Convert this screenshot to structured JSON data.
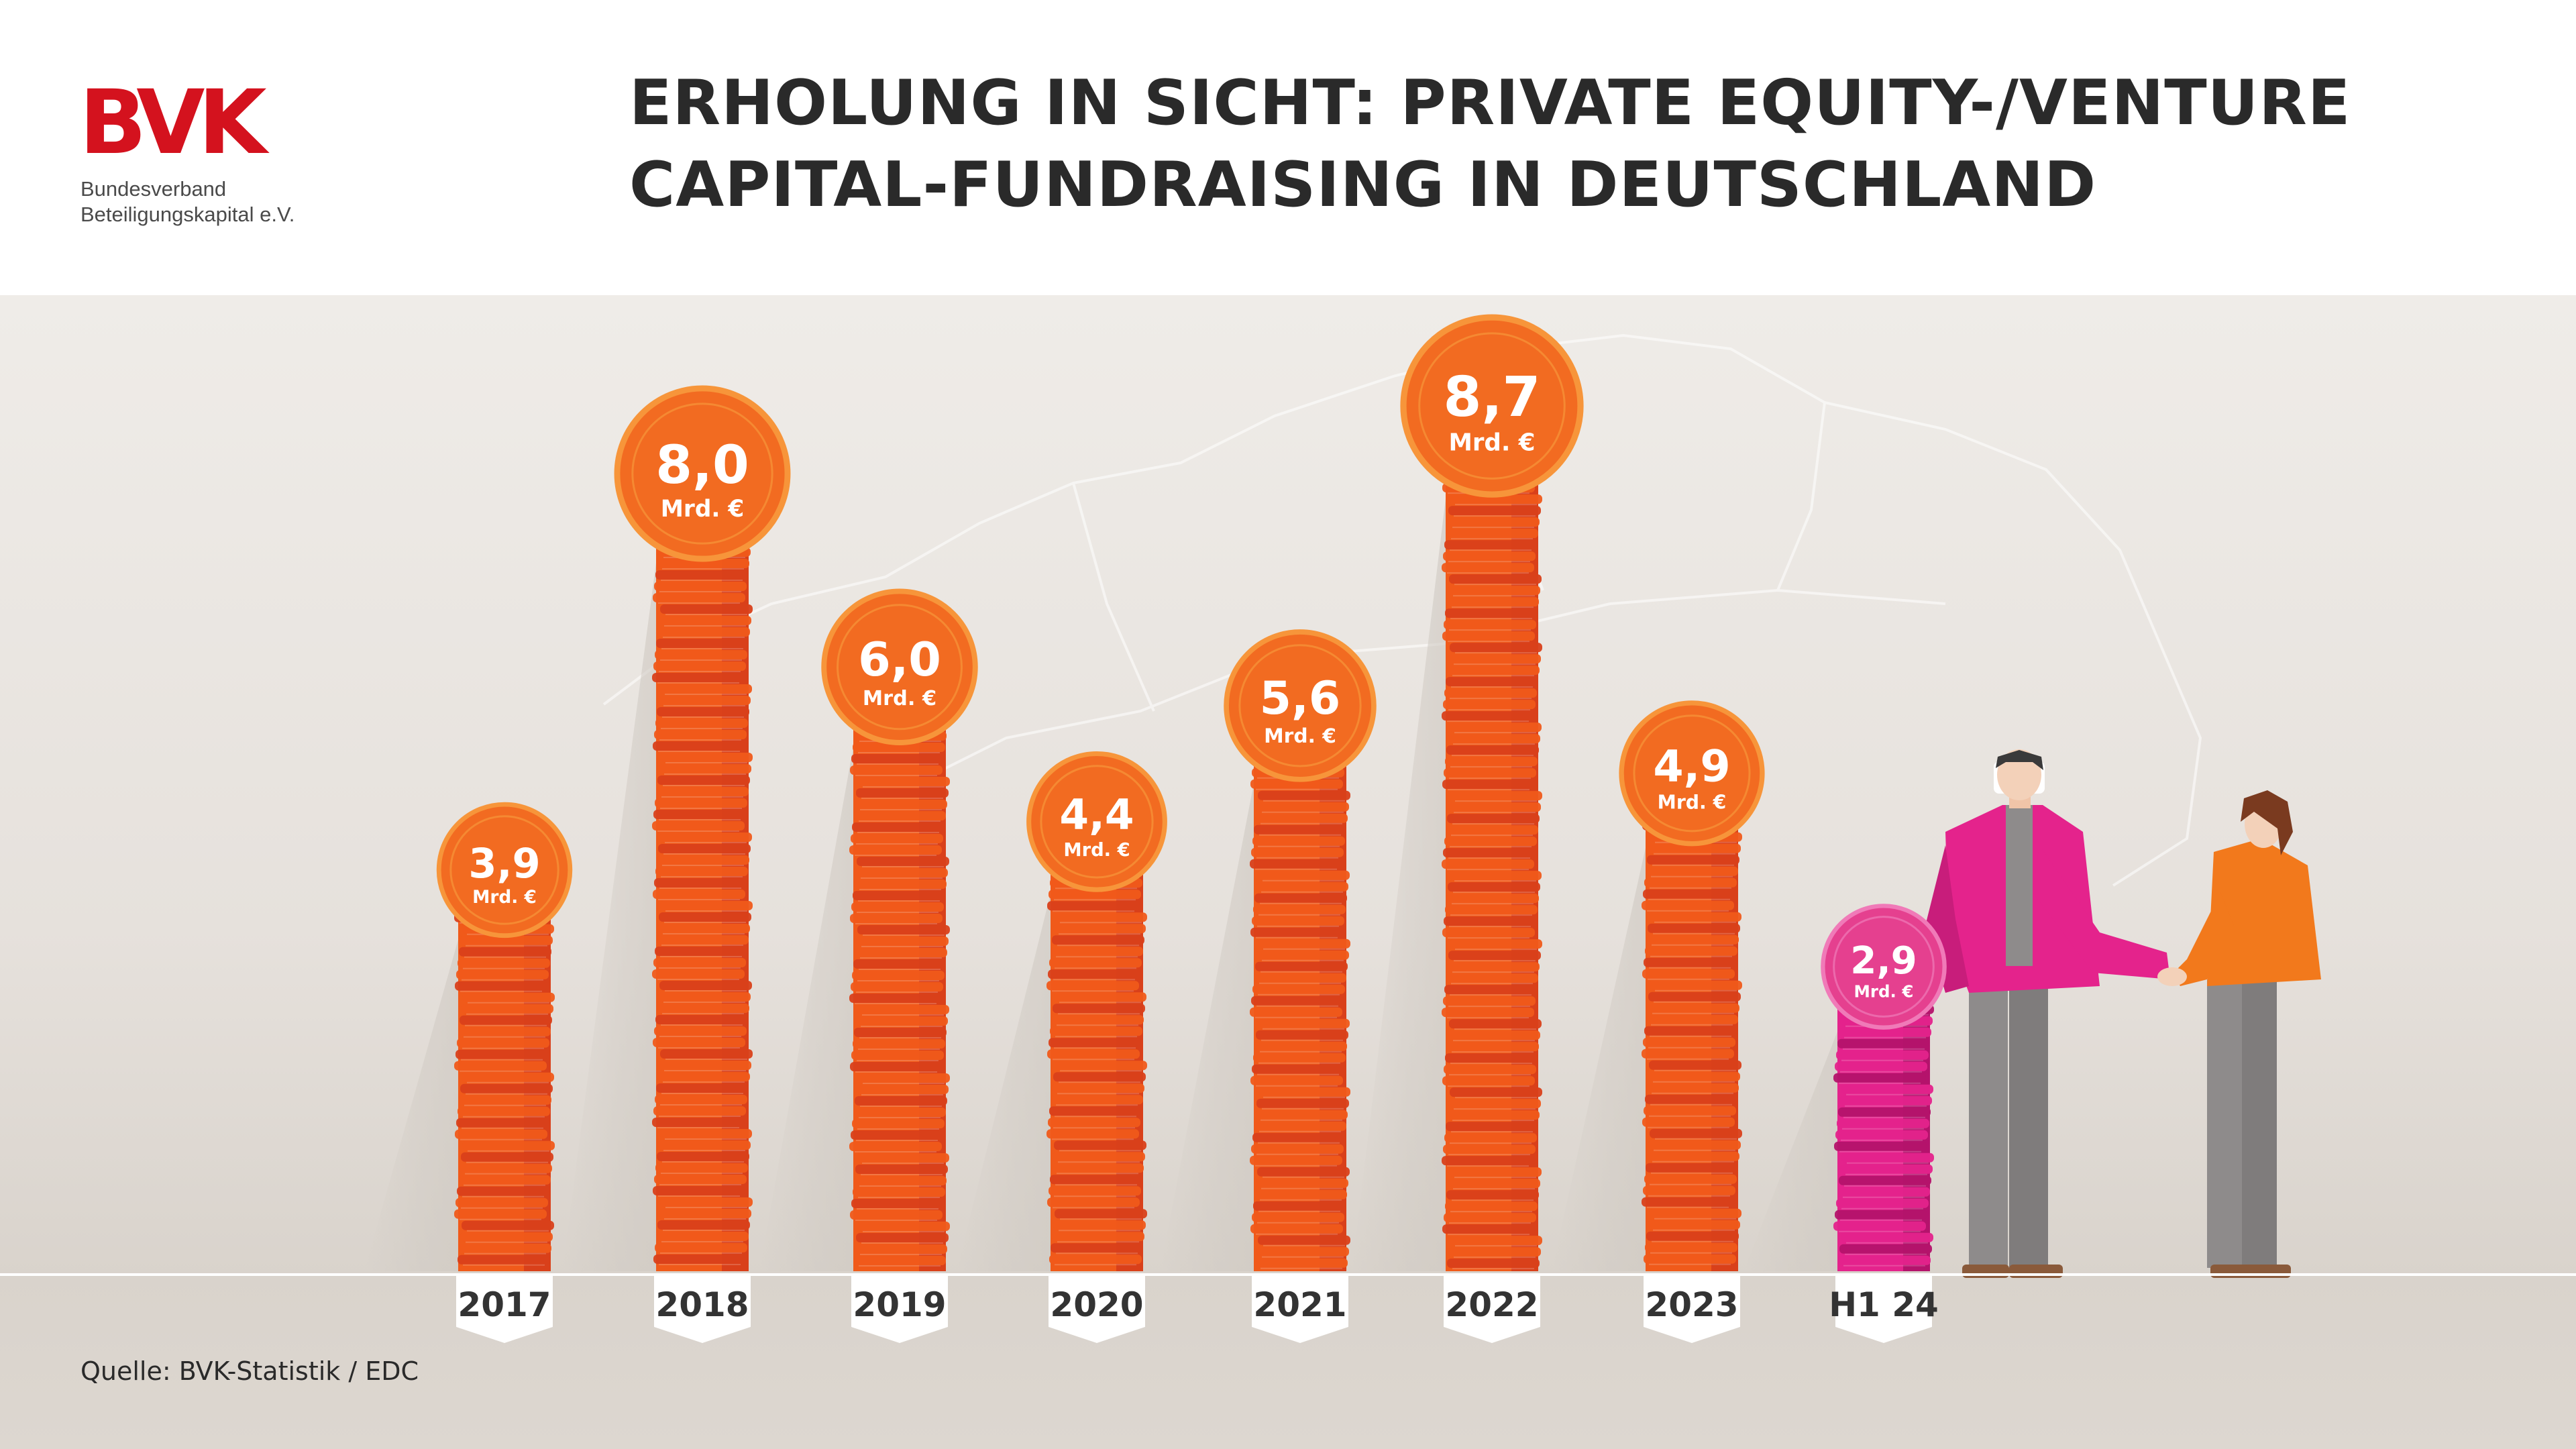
{
  "header": {
    "logo_mark": "BVK",
    "logo_line1": "Bundesverband",
    "logo_line2": "Beteiligungskapital e.V.",
    "title_line1": "ERHOLUNG IN SICHT: PRIVATE EQUITY-/VENTURE",
    "title_line2": "CAPITAL-FUNDRAISING IN DEUTSCHLAND"
  },
  "chart_data": {
    "type": "bar",
    "title": "ERHOLUNG IN SICHT: PRIVATE EQUITY-/VENTURE CAPITAL-FUNDRAISING IN DEUTSCHLAND",
    "categories": [
      "2017",
      "2018",
      "2019",
      "2020",
      "2021",
      "2022",
      "2023",
      "H1 24"
    ],
    "series": [
      {
        "values": [
          3.9,
          8.0,
          6.0,
          4.4,
          5.6,
          8.7,
          4.9,
          2.9
        ],
        "value_labels": [
          "3,9",
          "8,0",
          "6,0",
          "4,4",
          "5,6",
          "8,7",
          "4,9",
          "2,9"
        ]
      }
    ],
    "unit": "Mrd. €",
    "xlabel": "",
    "ylabel": "",
    "grid": false,
    "legend": "none",
    "colors": {
      "bar": "#f05a1a",
      "bar_dark": "#d9401a",
      "bar_highlight": "#e4238c",
      "bar_highlight_dark": "#b4136c",
      "coin": "#f26b21",
      "coin_ring": "#f7953a",
      "coin_highlight": "#e5408f",
      "coin_highlight_ring": "#f07ab8"
    }
  },
  "footer": {
    "source": "Quelle: BVK-Statistik / EDC"
  },
  "colors": {
    "brand_red": "#d4121e",
    "background_top": "#ece8e3",
    "background_bottom": "#dcd6cf",
    "text_dark": "#2a2a2a"
  }
}
